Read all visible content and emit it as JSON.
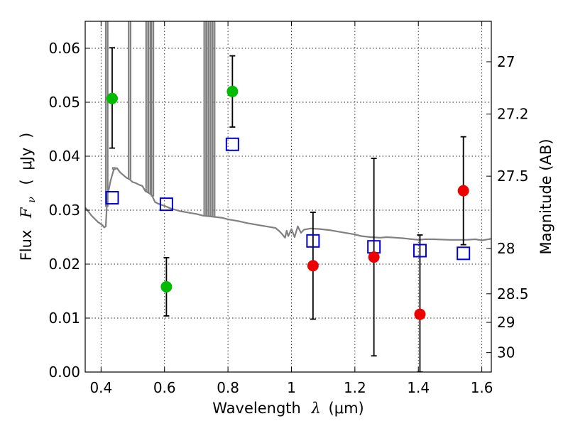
{
  "chart_data": {
    "type": "scatter",
    "xlabel": "Wavelength",
    "xlabel_symbol": "λ",
    "xlabel_unit": "(μm)",
    "ylabel": "Flux",
    "ylabel_symbol": "F",
    "ylabel_subscript": "ν",
    "ylabel_unit_open": "(",
    "ylabel_unit": "μJy",
    "ylabel_unit_close": ")",
    "y2label": "Magnitude (AB)",
    "xlim": [
      0.35,
      1.63
    ],
    "ylim": [
      0.0,
      0.065
    ],
    "grid": true,
    "xticks": [
      0.4,
      0.6,
      0.8,
      1.0,
      1.2,
      1.4,
      1.6
    ],
    "xtick_labels": [
      "0.4",
      "0.6",
      "0.8",
      "1",
      "1.2",
      "1.4",
      "1.6"
    ],
    "yticks": [
      0.0,
      0.01,
      0.02,
      0.03,
      0.04,
      0.05,
      0.06
    ],
    "ytick_labels": [
      "0.00",
      "0.01",
      "0.02",
      "0.03",
      "0.04",
      "0.05",
      "0.06"
    ],
    "y2ticks": [
      {
        "label": "27",
        "flux": 0.0575
      },
      {
        "label": "27.2",
        "flux": 0.0478
      },
      {
        "label": "27.5",
        "flux": 0.0363
      },
      {
        "label": "28",
        "flux": 0.0229
      },
      {
        "label": "28.5",
        "flux": 0.0145
      },
      {
        "label": "29",
        "flux": 0.0092
      },
      {
        "label": "30",
        "flux": 0.0036
      }
    ],
    "series": [
      {
        "name": "green detections",
        "marker": "circle",
        "color": "#00bb00",
        "points": [
          {
            "x": 0.435,
            "y": 0.0507,
            "ylo": 0.0415,
            "yhi": 0.0601
          },
          {
            "x": 0.606,
            "y": 0.0158,
            "ylo": 0.0104,
            "yhi": 0.0212
          },
          {
            "x": 0.814,
            "y": 0.052,
            "ylo": 0.0454,
            "yhi": 0.0586
          }
        ]
      },
      {
        "name": "red detections",
        "marker": "circle",
        "color": "#ee0000",
        "points": [
          {
            "x": 1.068,
            "y": 0.0197,
            "ylo": 0.0098,
            "yhi": 0.0296
          },
          {
            "x": 1.26,
            "y": 0.0213,
            "ylo": 0.003,
            "yhi": 0.0396
          },
          {
            "x": 1.405,
            "y": 0.0107,
            "ylo": 0.0,
            "yhi": 0.0254
          },
          {
            "x": 1.542,
            "y": 0.0336,
            "ylo": 0.0236,
            "yhi": 0.0436
          }
        ]
      },
      {
        "name": "model synthetic photometry",
        "marker": "open-square",
        "color": "#0000dd",
        "points": [
          {
            "x": 0.435,
            "y": 0.0323
          },
          {
            "x": 0.606,
            "y": 0.0311
          },
          {
            "x": 0.814,
            "y": 0.0422
          },
          {
            "x": 1.068,
            "y": 0.0243
          },
          {
            "x": 1.26,
            "y": 0.0232
          },
          {
            "x": 1.405,
            "y": 0.0225
          },
          {
            "x": 1.542,
            "y": 0.022
          }
        ]
      }
    ],
    "spectrum": {
      "name": "model spectrum",
      "color": "#808080",
      "points": [
        [
          0.35,
          0.0305
        ],
        [
          0.37,
          0.029
        ],
        [
          0.39,
          0.0278
        ],
        [
          0.405,
          0.0272
        ],
        [
          0.41,
          0.0268
        ],
        [
          0.415,
          0.027
        ],
        [
          0.42,
          0.033
        ],
        [
          0.425,
          0.034
        ],
        [
          0.43,
          0.0355
        ],
        [
          0.44,
          0.0375
        ],
        [
          0.45,
          0.0378
        ],
        [
          0.46,
          0.037
        ],
        [
          0.47,
          0.0365
        ],
        [
          0.48,
          0.036
        ],
        [
          0.49,
          0.0357
        ],
        [
          0.5,
          0.0352
        ],
        [
          0.51,
          0.035
        ],
        [
          0.52,
          0.0347
        ],
        [
          0.53,
          0.0345
        ],
        [
          0.54,
          0.0335
        ],
        [
          0.55,
          0.0332
        ],
        [
          0.56,
          0.0328
        ],
        [
          0.57,
          0.0315
        ],
        [
          0.58,
          0.0312
        ],
        [
          0.6,
          0.0308
        ],
        [
          0.62,
          0.0303
        ],
        [
          0.65,
          0.0298
        ],
        [
          0.68,
          0.0295
        ],
        [
          0.7,
          0.0293
        ],
        [
          0.72,
          0.029
        ],
        [
          0.75,
          0.0288
        ],
        [
          0.78,
          0.0286
        ],
        [
          0.8,
          0.0283
        ],
        [
          0.83,
          0.028
        ],
        [
          0.86,
          0.0276
        ],
        [
          0.9,
          0.0272
        ],
        [
          0.93,
          0.0269
        ],
        [
          0.95,
          0.0267
        ],
        [
          0.96,
          0.0262
        ],
        [
          0.97,
          0.0256
        ],
        [
          0.98,
          0.0249
        ],
        [
          0.985,
          0.0262
        ],
        [
          0.99,
          0.0252
        ],
        [
          1.0,
          0.0265
        ],
        [
          1.01,
          0.025
        ],
        [
          1.02,
          0.027
        ],
        [
          1.03,
          0.0258
        ],
        [
          1.04,
          0.0264
        ],
        [
          1.06,
          0.0266
        ],
        [
          1.09,
          0.0265
        ],
        [
          1.12,
          0.0263
        ],
        [
          1.15,
          0.026
        ],
        [
          1.18,
          0.0257
        ],
        [
          1.2,
          0.0255
        ],
        [
          1.22,
          0.0252
        ],
        [
          1.25,
          0.025
        ],
        [
          1.28,
          0.0249
        ],
        [
          1.3,
          0.025
        ],
        [
          1.33,
          0.0249
        ],
        [
          1.35,
          0.0248
        ],
        [
          1.4,
          0.0245
        ],
        [
          1.42,
          0.0246
        ],
        [
          1.45,
          0.0246
        ],
        [
          1.5,
          0.0245
        ],
        [
          1.55,
          0.0245
        ],
        [
          1.58,
          0.0246
        ],
        [
          1.6,
          0.0244
        ],
        [
          1.63,
          0.0247
        ]
      ],
      "emission_lines": [
        {
          "x": 0.418,
          "peak": 0.065
        },
        {
          "x": 0.44,
          "peak": 0.038
        },
        {
          "x": 0.49,
          "peak": 0.065
        },
        {
          "x": 0.545,
          "peak": 0.065
        },
        {
          "x": 0.553,
          "peak": 0.065
        },
        {
          "x": 0.562,
          "peak": 0.065
        },
        {
          "x": 0.728,
          "peak": 0.065
        },
        {
          "x": 0.736,
          "peak": 0.065
        },
        {
          "x": 0.748,
          "peak": 0.065
        },
        {
          "x": 0.755,
          "peak": 0.065
        }
      ]
    }
  }
}
